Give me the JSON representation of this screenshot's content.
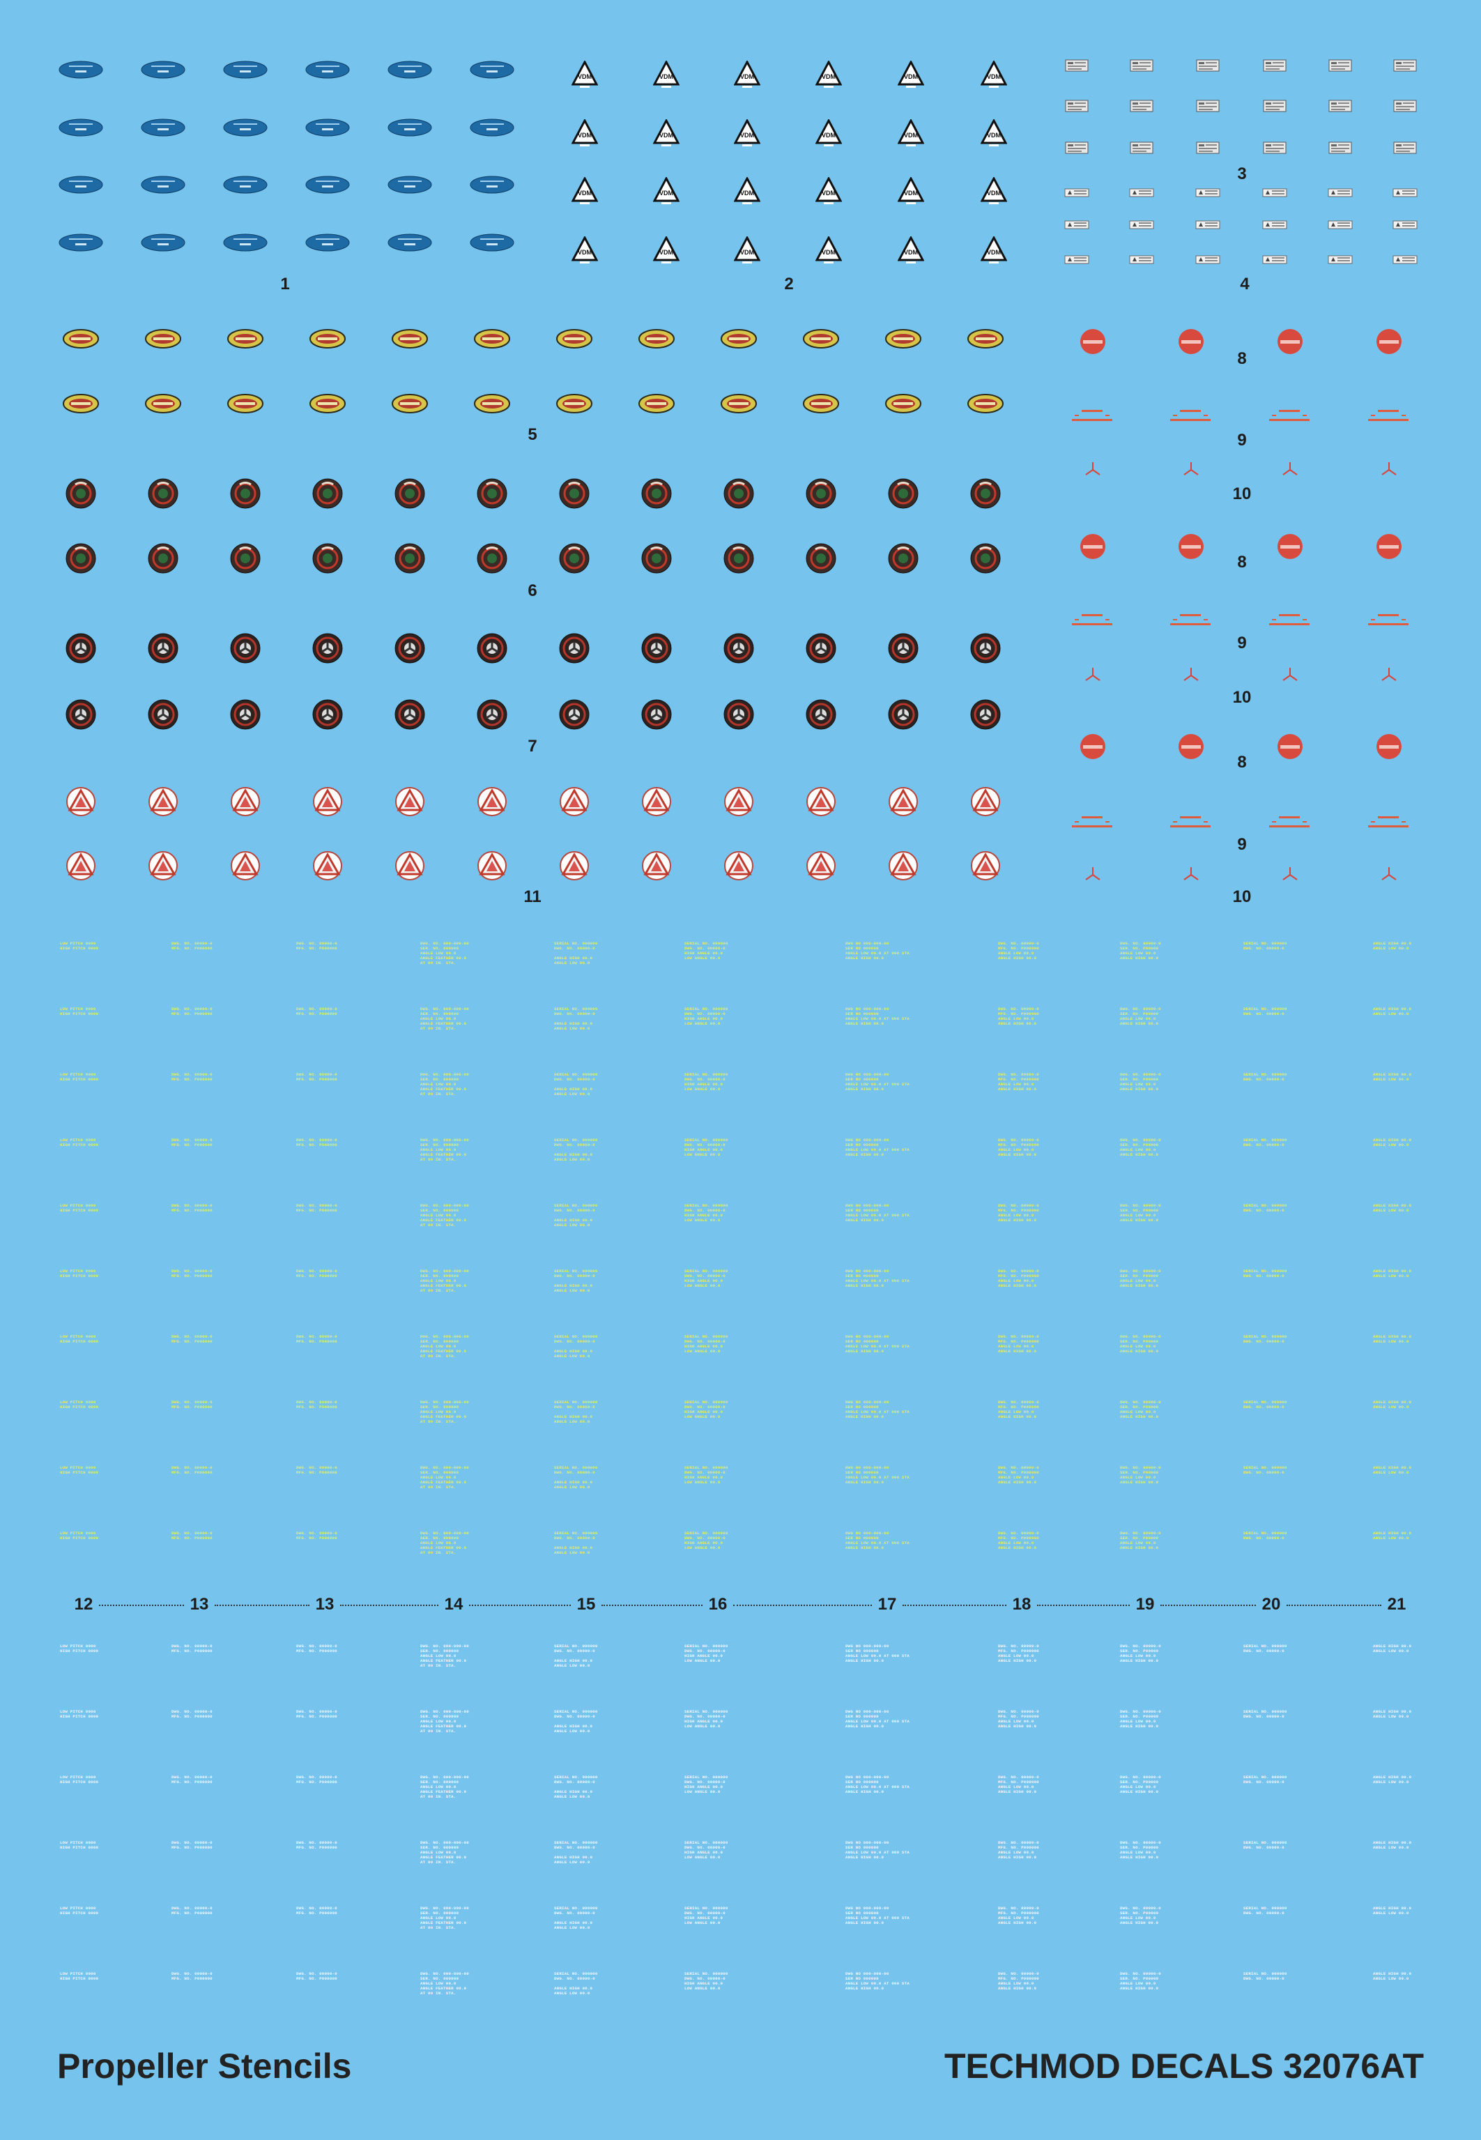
{
  "set_title": "Propeller Stencils",
  "brand": "TECHMOD DECALS 32076AT",
  "colors": {
    "sheet_background": "#76c3ed",
    "stencil_yellow": "#e4f06a",
    "stencil_white": "#f4f8ff",
    "vdm_oval_blue": "#1d6aa5",
    "badge_red": "#d94a3e",
    "numbers": "#1c1c1c"
  },
  "decals": [
    {
      "id": "1",
      "label": "1",
      "kind": "blue-oval-logo",
      "icon": "vdm-oval-logo"
    },
    {
      "id": "2",
      "label": "2",
      "kind": "white-triangle-logo",
      "icon": "vdm-triangle-logo"
    },
    {
      "id": "3",
      "label": "3",
      "kind": "small-data-plate"
    },
    {
      "id": "4",
      "label": "4",
      "kind": "small-data-plate"
    },
    {
      "id": "5",
      "label": "5",
      "kind": "yellow-oval-logo"
    },
    {
      "id": "6",
      "label": "6",
      "kind": "round-hub-logo-green"
    },
    {
      "id": "7",
      "label": "7",
      "kind": "round-hub-logo-tri"
    },
    {
      "id": "8",
      "label": "8",
      "kind": "red-round-badge"
    },
    {
      "id": "9",
      "label": "9",
      "kind": "red-text-stencil"
    },
    {
      "id": "10",
      "label": "10",
      "kind": "red-three-blade-mark"
    },
    {
      "id": "11",
      "label": "11",
      "kind": "red-white-triangle"
    }
  ],
  "stencil_columns": [
    {
      "label": "12"
    },
    {
      "label": "13"
    },
    {
      "label": "13"
    },
    {
      "label": "14"
    },
    {
      "label": "15"
    },
    {
      "label": "16"
    },
    {
      "label": "17"
    },
    {
      "label": "18"
    },
    {
      "label": "19"
    },
    {
      "label": "20"
    },
    {
      "label": "21"
    }
  ]
}
